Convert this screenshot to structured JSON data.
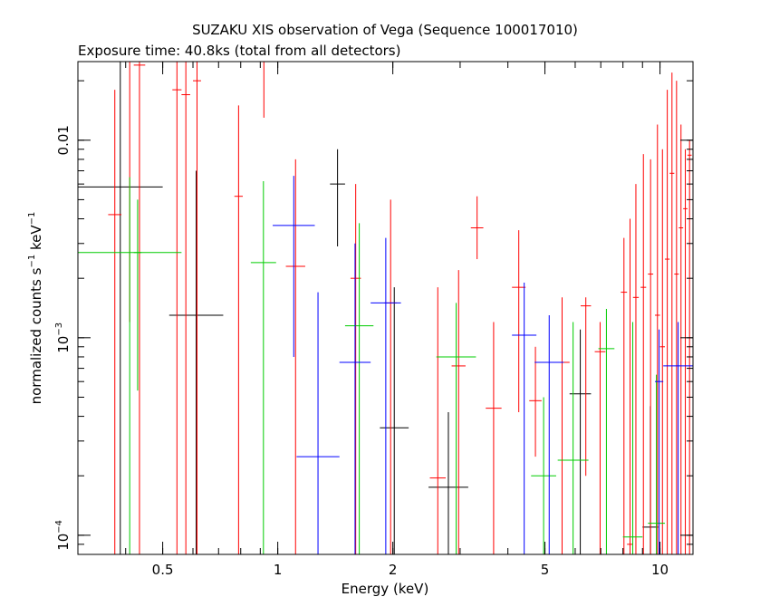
{
  "chart_data": {
    "type": "scatter",
    "title": "SUZAKU XIS observation of Vega (Sequence 100017010)",
    "subtitle": "Exposure time: 40.8ks (total from all detectors)",
    "xlabel": "Energy (keV)",
    "ylabel_parts": {
      "base": "normalized counts s",
      "exp1": "−1",
      "mid": " keV",
      "exp2": "−1"
    },
    "x_scale": "log",
    "y_scale": "log",
    "xlim": [
      0.3,
      12.2
    ],
    "ylim": [
      8e-05,
      0.025
    ],
    "x_ticks_major": [
      {
        "v": 0.5,
        "label": "0.5"
      },
      {
        "v": 1,
        "label": "1"
      },
      {
        "v": 2,
        "label": "2"
      },
      {
        "v": 5,
        "label": "5"
      },
      {
        "v": 10,
        "label": "10"
      }
    ],
    "y_ticks_major": [
      {
        "v": 0.0001,
        "base": "10",
        "exp": "−4"
      },
      {
        "v": 0.001,
        "base": "10",
        "exp": "−3"
      },
      {
        "v": 0.01,
        "label": "0.01"
      }
    ],
    "grid": false,
    "series": [
      {
        "color": "#000000",
        "points": [
          {
            "x0": 0.3,
            "x1": 0.5,
            "y": 0.0058,
            "ylo": 8e-05,
            "yhi": 0.025
          },
          {
            "x0": 0.52,
            "x1": 0.72,
            "y": 0.0013,
            "ylo": 8e-05,
            "yhi": 0.007
          },
          {
            "x0": 1.37,
            "x1": 1.5,
            "y": 0.006,
            "ylo": 0.0029,
            "yhi": 0.009
          },
          {
            "x0": 1.85,
            "x1": 2.2,
            "y": 0.00035,
            "ylo": 8e-05,
            "yhi": 0.0018
          },
          {
            "x0": 2.48,
            "x1": 3.15,
            "y": 0.000175,
            "ylo": 8e-05,
            "yhi": 0.00042
          },
          {
            "x0": 5.8,
            "x1": 6.6,
            "y": 0.00052,
            "ylo": 8e-05,
            "yhi": 0.0011
          },
          {
            "x0": 9.0,
            "x1": 9.9,
            "y": 0.00011,
            "ylo": 8e-05,
            "yhi": 0.00045
          }
        ]
      },
      {
        "color": "#ff0000",
        "points": [
          {
            "x0": 0.36,
            "x1": 0.39,
            "y": 0.0042,
            "ylo": 8e-05,
            "yhi": 0.018
          },
          {
            "x0": 0.4,
            "x1": 0.42,
            "y": 0.025,
            "ylo": 0.0012,
            "yhi": 0.025
          },
          {
            "x0": 0.42,
            "x1": 0.45,
            "y": 0.024,
            "ylo": 8e-05,
            "yhi": 0.025
          },
          {
            "x0": 0.53,
            "x1": 0.56,
            "y": 0.018,
            "ylo": 8e-05,
            "yhi": 0.025
          },
          {
            "x0": 0.56,
            "x1": 0.59,
            "y": 0.017,
            "ylo": 8e-05,
            "yhi": 0.025
          },
          {
            "x0": 0.6,
            "x1": 0.63,
            "y": 0.02,
            "ylo": 8e-05,
            "yhi": 0.025
          },
          {
            "x0": 0.77,
            "x1": 0.81,
            "y": 0.0052,
            "ylo": 8e-05,
            "yhi": 0.015
          },
          {
            "x0": 0.9,
            "x1": 0.94,
            "y": 0.025,
            "ylo": 0.013,
            "yhi": 0.025
          },
          {
            "x0": 1.05,
            "x1": 1.18,
            "y": 0.0023,
            "ylo": 8e-05,
            "yhi": 0.008
          },
          {
            "x0": 1.55,
            "x1": 1.65,
            "y": 0.002,
            "ylo": 8e-05,
            "yhi": 0.006
          },
          {
            "x0": 1.9,
            "x1": 2.05,
            "y": 0.0015,
            "ylo": 8e-05,
            "yhi": 0.005
          },
          {
            "x0": 2.5,
            "x1": 2.75,
            "y": 0.000195,
            "ylo": 8e-05,
            "yhi": 0.0018
          },
          {
            "x0": 2.85,
            "x1": 3.1,
            "y": 0.00072,
            "ylo": 8e-05,
            "yhi": 0.0022
          },
          {
            "x0": 3.2,
            "x1": 3.45,
            "y": 0.0036,
            "ylo": 0.0025,
            "yhi": 0.0052
          },
          {
            "x0": 3.5,
            "x1": 3.85,
            "y": 0.00044,
            "ylo": 8e-05,
            "yhi": 0.0012
          },
          {
            "x0": 4.1,
            "x1": 4.45,
            "y": 0.0018,
            "ylo": 0.00042,
            "yhi": 0.0035
          },
          {
            "x0": 4.55,
            "x1": 4.9,
            "y": 0.00048,
            "ylo": 0.00025,
            "yhi": 0.0009
          },
          {
            "x0": 5.3,
            "x1": 5.8,
            "y": 0.00075,
            "ylo": 8e-05,
            "yhi": 0.0016
          },
          {
            "x0": 6.2,
            "x1": 6.6,
            "y": 0.00145,
            "ylo": 0.0002,
            "yhi": 0.0016
          },
          {
            "x0": 6.75,
            "x1": 7.2,
            "y": 0.00085,
            "ylo": 8e-05,
            "yhi": 0.0012
          },
          {
            "x0": 7.9,
            "x1": 8.2,
            "y": 0.0017,
            "ylo": 8e-05,
            "yhi": 0.0032
          },
          {
            "x0": 8.2,
            "x1": 8.5,
            "y": 9e-05,
            "ylo": 8e-05,
            "yhi": 0.004
          },
          {
            "x0": 8.5,
            "x1": 8.8,
            "y": 0.0016,
            "ylo": 8e-05,
            "yhi": 0.006
          },
          {
            "x0": 8.9,
            "x1": 9.2,
            "y": 0.0018,
            "ylo": 8e-05,
            "yhi": 0.0085
          },
          {
            "x0": 9.3,
            "x1": 9.6,
            "y": 0.0021,
            "ylo": 8e-05,
            "yhi": 0.008
          },
          {
            "x0": 9.7,
            "x1": 10.0,
            "y": 0.0013,
            "ylo": 8e-05,
            "yhi": 0.012
          },
          {
            "x0": 10.0,
            "x1": 10.3,
            "y": 0.0009,
            "ylo": 8e-05,
            "yhi": 0.009
          },
          {
            "x0": 10.3,
            "x1": 10.6,
            "y": 0.0025,
            "ylo": 8e-05,
            "yhi": 0.018
          },
          {
            "x0": 10.6,
            "x1": 10.9,
            "y": 0.0068,
            "ylo": 8e-05,
            "yhi": 0.022
          },
          {
            "x0": 10.9,
            "x1": 11.2,
            "y": 0.0021,
            "ylo": 8e-05,
            "yhi": 0.02
          },
          {
            "x0": 11.2,
            "x1": 11.5,
            "y": 0.0036,
            "ylo": 8e-05,
            "yhi": 0.012
          },
          {
            "x0": 11.5,
            "x1": 11.8,
            "y": 0.0045,
            "ylo": 8e-05,
            "yhi": 0.009
          },
          {
            "x0": 11.8,
            "x1": 12.1,
            "y": 0.0084,
            "ylo": 8e-05,
            "yhi": 0.01
          }
        ]
      },
      {
        "color": "#00cc00",
        "points": [
          {
            "x0": 0.3,
            "x1": 0.56,
            "y": 0.0027,
            "ylo": 8e-05,
            "yhi": 0.0065
          },
          {
            "x0": 0.42,
            "x1": 0.44,
            "y": 0.0027,
            "ylo": 0.00054,
            "yhi": 0.005
          },
          {
            "x0": 0.85,
            "x1": 0.99,
            "y": 0.0024,
            "ylo": 8e-05,
            "yhi": 0.0062
          },
          {
            "x0": 1.5,
            "x1": 1.78,
            "y": 0.00115,
            "ylo": 8e-05,
            "yhi": 0.0038
          },
          {
            "x0": 2.6,
            "x1": 3.3,
            "y": 0.0008,
            "ylo": 8e-05,
            "yhi": 0.0015
          },
          {
            "x0": 4.6,
            "x1": 5.35,
            "y": 0.0002,
            "ylo": 8e-05,
            "yhi": 0.0005
          },
          {
            "x0": 5.4,
            "x1": 6.5,
            "y": 0.00024,
            "ylo": 8e-05,
            "yhi": 0.0012
          },
          {
            "x0": 6.9,
            "x1": 7.6,
            "y": 0.00088,
            "ylo": 8e-05,
            "yhi": 0.0014
          },
          {
            "x0": 8.0,
            "x1": 9.0,
            "y": 9.8e-05,
            "ylo": 8e-05,
            "yhi": 0.0012
          },
          {
            "x0": 9.3,
            "x1": 10.3,
            "y": 0.000115,
            "ylo": 8e-05,
            "yhi": 0.00065
          }
        ]
      },
      {
        "color": "#0000ff",
        "points": [
          {
            "x0": 0.97,
            "x1": 1.25,
            "y": 0.0037,
            "ylo": 0.0008,
            "yhi": 0.0066
          },
          {
            "x0": 1.12,
            "x1": 1.45,
            "y": 0.00025,
            "ylo": 8e-05,
            "yhi": 0.0017
          },
          {
            "x0": 1.45,
            "x1": 1.75,
            "y": 0.00075,
            "ylo": 8e-05,
            "yhi": 0.003
          },
          {
            "x0": 1.75,
            "x1": 2.1,
            "y": 0.0015,
            "ylo": 8e-05,
            "yhi": 0.0032
          },
          {
            "x0": 4.1,
            "x1": 4.75,
            "y": 0.00103,
            "ylo": 8e-05,
            "yhi": 0.0019
          },
          {
            "x0": 4.7,
            "x1": 5.6,
            "y": 0.00075,
            "ylo": 8e-05,
            "yhi": 0.0013
          },
          {
            "x0": 9.7,
            "x1": 10.2,
            "y": 0.0006,
            "ylo": 8e-05,
            "yhi": 0.0011
          },
          {
            "x0": 10.2,
            "x1": 12.2,
            "y": 0.00072,
            "ylo": 8e-05,
            "yhi": 0.0012
          }
        ]
      }
    ]
  }
}
